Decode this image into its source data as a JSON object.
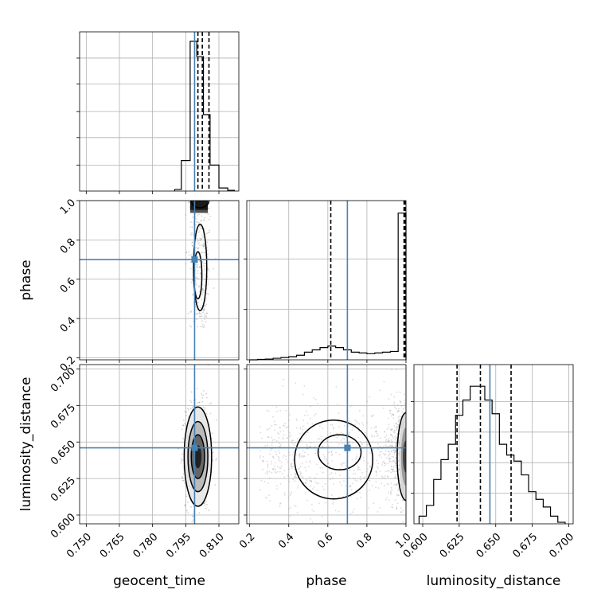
{
  "chart_data": {
    "type": "corner",
    "parameters": [
      "geocent_time",
      "phase",
      "luminosity_distance"
    ],
    "truths": {
      "geocent_time": 0.799,
      "phase": 0.7,
      "luminosity_distance": 0.646
    },
    "truth_color": "#4682b4",
    "grid": true,
    "panels": {
      "geocent_time_hist": {
        "xlim": [
          0.747,
          0.819
        ],
        "xticks": [
          "0.750",
          "0.765",
          "0.780",
          "0.795",
          "0.810"
        ],
        "xtick_values": [
          0.75,
          0.765,
          0.78,
          0.795,
          0.81
        ],
        "quantiles": [
          0.8005,
          0.8025,
          0.8055
        ],
        "bins": [
          [
            0.79,
            0.793,
            0.01
          ],
          [
            0.793,
            0.797,
            0.2
          ],
          [
            0.797,
            0.8,
            0.98
          ],
          [
            0.8,
            0.803,
            0.88
          ],
          [
            0.803,
            0.806,
            0.5
          ],
          [
            0.806,
            0.81,
            0.17
          ],
          [
            0.81,
            0.814,
            0.02
          ],
          [
            0.814,
            0.817,
            0.005
          ]
        ]
      },
      "phase_hist": {
        "xlim": [
          0.185,
          1.0
        ],
        "xticks": [
          "0.2",
          "0.4",
          "0.6",
          "0.8",
          "1.0"
        ],
        "xtick_values": [
          0.2,
          0.4,
          0.6,
          0.8,
          1.0
        ],
        "quantiles": [
          0.615,
          0.99,
          0.995
        ],
        "bins": [
          [
            0.2,
            0.24,
            0.0
          ],
          [
            0.24,
            0.28,
            0.003
          ],
          [
            0.28,
            0.32,
            0.005
          ],
          [
            0.32,
            0.36,
            0.01
          ],
          [
            0.36,
            0.4,
            0.015
          ],
          [
            0.4,
            0.44,
            0.02
          ],
          [
            0.44,
            0.48,
            0.03
          ],
          [
            0.48,
            0.52,
            0.05
          ],
          [
            0.52,
            0.56,
            0.065
          ],
          [
            0.56,
            0.6,
            0.08
          ],
          [
            0.6,
            0.64,
            0.09
          ],
          [
            0.64,
            0.68,
            0.08
          ],
          [
            0.68,
            0.72,
            0.065
          ],
          [
            0.72,
            0.76,
            0.05
          ],
          [
            0.76,
            0.8,
            0.045
          ],
          [
            0.8,
            0.84,
            0.04
          ],
          [
            0.84,
            0.88,
            0.045
          ],
          [
            0.88,
            0.92,
            0.05
          ],
          [
            0.92,
            0.96,
            0.055
          ],
          [
            0.96,
            1.0,
            0.96
          ]
        ]
      },
      "luminosity_distance_hist": {
        "xlim": [
          0.594,
          0.703
        ],
        "xticks": [
          "0.600",
          "0.625",
          "0.650",
          "0.675",
          "0.700"
        ],
        "xtick_values": [
          0.6,
          0.625,
          0.65,
          0.675,
          0.7
        ],
        "quantiles": [
          0.6235,
          0.6395,
          0.6605
        ],
        "bins": [
          [
            0.5975,
            0.6025,
            0.05
          ],
          [
            0.6025,
            0.6075,
            0.12
          ],
          [
            0.6075,
            0.6125,
            0.29
          ],
          [
            0.6125,
            0.6175,
            0.42
          ],
          [
            0.6175,
            0.6225,
            0.52
          ],
          [
            0.6225,
            0.6275,
            0.71
          ],
          [
            0.6275,
            0.6325,
            0.81
          ],
          [
            0.6325,
            0.6375,
            0.9
          ],
          [
            0.6375,
            0.6425,
            0.9
          ],
          [
            0.6425,
            0.6475,
            0.81
          ],
          [
            0.6475,
            0.6525,
            0.72
          ],
          [
            0.6525,
            0.6575,
            0.52
          ],
          [
            0.6575,
            0.6625,
            0.45
          ],
          [
            0.6625,
            0.6675,
            0.41
          ],
          [
            0.6675,
            0.6725,
            0.32
          ],
          [
            0.6725,
            0.6775,
            0.21
          ],
          [
            0.6775,
            0.6825,
            0.16
          ],
          [
            0.6825,
            0.6875,
            0.11
          ],
          [
            0.6875,
            0.6925,
            0.05
          ],
          [
            0.6925,
            0.6975,
            0.01
          ]
        ]
      },
      "phase_vs_geocent_time": {
        "xlim": [
          0.747,
          0.819
        ],
        "ylim": [
          0.19,
          1.0
        ],
        "yticks": [
          "0.2",
          "0.4",
          "0.6",
          "0.8",
          "1.0"
        ],
        "ytick_values": [
          0.2,
          0.4,
          0.6,
          0.8,
          1.0
        ]
      },
      "luminosity_distance_vs_geocent_time": {
        "xlim": [
          0.747,
          0.819
        ],
        "ylim": [
          0.594,
          0.703
        ],
        "yticks": [
          "0.600",
          "0.625",
          "0.650",
          "0.675",
          "0.700"
        ],
        "ytick_values": [
          0.6,
          0.625,
          0.65,
          0.675,
          0.7
        ]
      },
      "luminosity_distance_vs_phase": {
        "xlim": [
          0.185,
          1.0
        ],
        "ylim": [
          0.594,
          0.703
        ]
      }
    }
  }
}
